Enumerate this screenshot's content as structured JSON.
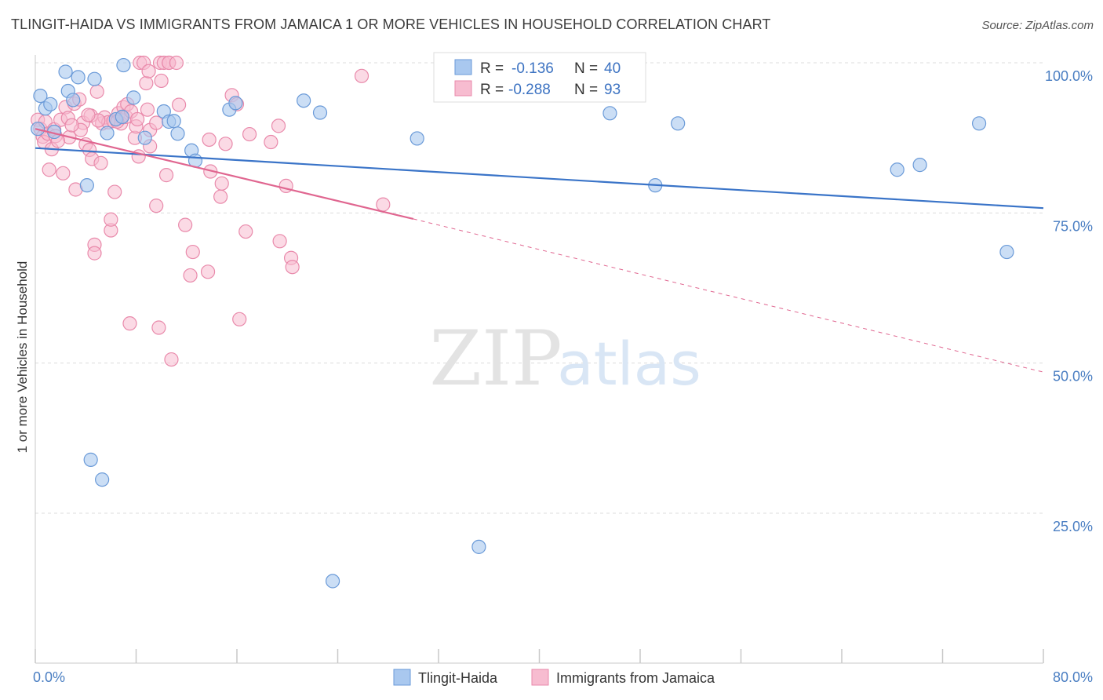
{
  "header": {
    "title": "TLINGIT-HAIDA VS IMMIGRANTS FROM JAMAICA 1 OR MORE VEHICLES IN HOUSEHOLD CORRELATION CHART",
    "source": "Source: ZipAtlas.com"
  },
  "watermark": {
    "zip": "ZIP",
    "atlas": "atlas"
  },
  "colors": {
    "series1_fill": "#a9c8ef",
    "series1_stroke": "#6a9ad8",
    "series1_line": "#3a74c8",
    "series2_fill": "#f7bcd0",
    "series2_stroke": "#e98aab",
    "series2_line": "#e06690",
    "tick": "#4a7ec2",
    "grid": "#dcdcdc"
  },
  "legend": {
    "r_label": "R =",
    "n_label": "N =",
    "rows": [
      {
        "r": "-0.136",
        "n": "40"
      },
      {
        "r": "-0.288",
        "n": "93"
      }
    ]
  },
  "chart_data": {
    "type": "scatter",
    "title": "TLINGIT-HAIDA VS IMMIGRANTS FROM JAMAICA 1 OR MORE VEHICLES IN HOUSEHOLD CORRELATION CHART",
    "xlabel": "",
    "ylabel": "1 or more Vehicles in Household",
    "xlim": [
      0,
      80
    ],
    "ylim": [
      0,
      102
    ],
    "x_ticks": [
      "0.0%",
      "80.0%"
    ],
    "y_ticks": [
      {
        "value": 100,
        "label": "100.0%"
      },
      {
        "value": 75,
        "label": "75.0%"
      },
      {
        "value": 50,
        "label": "50.0%"
      },
      {
        "value": 25,
        "label": "25.0%"
      }
    ],
    "legend_placement": "top-center",
    "series": [
      {
        "name": "Tlingit-Haida",
        "r": -0.136,
        "n": 40,
        "trend": {
          "x": [
            0,
            80
          ],
          "y": [
            85.8,
            75.8
          ]
        },
        "points": [
          [
            0.4,
            94.5
          ],
          [
            0.8,
            92.4
          ],
          [
            1.2,
            93.1
          ],
          [
            1.5,
            88.5
          ],
          [
            2.4,
            98.5
          ],
          [
            2.6,
            95.3
          ],
          [
            3.0,
            93.8
          ],
          [
            3.4,
            97.6
          ],
          [
            4.1,
            79.6
          ],
          [
            4.7,
            97.3
          ],
          [
            4.4,
            33.9
          ],
          [
            5.3,
            30.6
          ],
          [
            5.7,
            88.3
          ],
          [
            6.4,
            90.6
          ],
          [
            6.9,
            91.0
          ],
          [
            7.0,
            99.6
          ],
          [
            7.8,
            94.2
          ],
          [
            8.7,
            87.5
          ],
          [
            10.2,
            91.9
          ],
          [
            10.6,
            90.2
          ],
          [
            11.0,
            90.3
          ],
          [
            11.3,
            88.2
          ],
          [
            12.4,
            85.4
          ],
          [
            12.7,
            83.7
          ],
          [
            15.4,
            92.2
          ],
          [
            15.9,
            93.3
          ],
          [
            21.3,
            93.7
          ],
          [
            22.6,
            91.7
          ],
          [
            23.6,
            13.7
          ],
          [
            30.3,
            87.4
          ],
          [
            35.2,
            19.4
          ],
          [
            36.1,
            96.8
          ],
          [
            45.6,
            91.6
          ],
          [
            49.2,
            79.6
          ],
          [
            51.0,
            89.9
          ],
          [
            68.4,
            82.2
          ],
          [
            70.2,
            83.0
          ],
          [
            74.9,
            89.9
          ],
          [
            77.1,
            68.5
          ],
          [
            0.2,
            89.0
          ]
        ]
      },
      {
        "name": "Immigrants from Jamaica",
        "r": -0.288,
        "n": 93,
        "trend": {
          "x": [
            0,
            30
          ],
          "y": [
            89.0,
            74.0
          ]
        },
        "trend_dashed": {
          "x": [
            30,
            80
          ],
          "y": [
            74.0,
            48.5
          ]
        },
        "points": [
          [
            0.2,
            90.5
          ],
          [
            0.4,
            89.0
          ],
          [
            0.6,
            87.7
          ],
          [
            0.7,
            86.8
          ],
          [
            0.8,
            90.2
          ],
          [
            1.0,
            88.2
          ],
          [
            1.1,
            82.2
          ],
          [
            1.3,
            85.6
          ],
          [
            1.5,
            88.9
          ],
          [
            1.6,
            87.8
          ],
          [
            2.0,
            90.5
          ],
          [
            2.2,
            81.6
          ],
          [
            2.4,
            92.6
          ],
          [
            2.6,
            90.8
          ],
          [
            2.7,
            87.6
          ],
          [
            3.1,
            93.2
          ],
          [
            3.2,
            78.9
          ],
          [
            3.5,
            93.9
          ],
          [
            3.8,
            90.0
          ],
          [
            4.0,
            86.4
          ],
          [
            4.3,
            85.5
          ],
          [
            4.4,
            91.2
          ],
          [
            4.5,
            84.0
          ],
          [
            4.7,
            69.7
          ],
          [
            4.7,
            68.3
          ],
          [
            4.9,
            95.2
          ],
          [
            5.2,
            83.3
          ],
          [
            5.3,
            89.9
          ],
          [
            5.5,
            90.9
          ],
          [
            5.8,
            90.1
          ],
          [
            6.0,
            72.1
          ],
          [
            6.0,
            73.9
          ],
          [
            6.2,
            90.3
          ],
          [
            6.3,
            78.5
          ],
          [
            6.6,
            91.6
          ],
          [
            6.8,
            90.8
          ],
          [
            6.8,
            89.9
          ],
          [
            7.0,
            92.6
          ],
          [
            7.2,
            91.0
          ],
          [
            7.3,
            93.1
          ],
          [
            7.5,
            56.6
          ],
          [
            7.9,
            87.5
          ],
          [
            8.0,
            89.4
          ],
          [
            8.2,
            84.4
          ],
          [
            8.3,
            100.0
          ],
          [
            8.6,
            100.0
          ],
          [
            8.8,
            96.6
          ],
          [
            8.9,
            92.2
          ],
          [
            9.0,
            98.6
          ],
          [
            9.1,
            86.1
          ],
          [
            9.1,
            88.8
          ],
          [
            9.6,
            76.2
          ],
          [
            9.6,
            90.0
          ],
          [
            9.8,
            55.9
          ],
          [
            9.9,
            100.0
          ],
          [
            10.0,
            97.0
          ],
          [
            10.2,
            100.0
          ],
          [
            10.4,
            81.3
          ],
          [
            10.6,
            100.0
          ],
          [
            10.6,
            100.0
          ],
          [
            10.8,
            50.6
          ],
          [
            11.2,
            100.0
          ],
          [
            11.4,
            93.0
          ],
          [
            11.9,
            73.0
          ],
          [
            12.3,
            64.6
          ],
          [
            12.5,
            68.5
          ],
          [
            13.7,
            65.2
          ],
          [
            13.8,
            87.2
          ],
          [
            13.9,
            81.9
          ],
          [
            14.7,
            77.7
          ],
          [
            14.8,
            79.9
          ],
          [
            15.1,
            86.5
          ],
          [
            15.6,
            94.6
          ],
          [
            16.0,
            93.1
          ],
          [
            16.2,
            57.3
          ],
          [
            16.7,
            71.9
          ],
          [
            17.0,
            88.1
          ],
          [
            18.7,
            86.8
          ],
          [
            19.3,
            89.5
          ],
          [
            19.4,
            70.3
          ],
          [
            19.9,
            79.5
          ],
          [
            20.3,
            67.5
          ],
          [
            20.4,
            66.0
          ],
          [
            25.9,
            97.8
          ],
          [
            27.6,
            76.4
          ],
          [
            1.8,
            87.0
          ],
          [
            3.6,
            88.8
          ],
          [
            5.0,
            90.4
          ],
          [
            6.5,
            90.2
          ],
          [
            7.6,
            91.9
          ],
          [
            8.1,
            90.6
          ],
          [
            2.9,
            89.6
          ],
          [
            4.2,
            91.3
          ]
        ]
      }
    ]
  },
  "bottom_legend": [
    {
      "label": "Tlingit-Haida"
    },
    {
      "label": "Immigrants from Jamaica"
    }
  ]
}
